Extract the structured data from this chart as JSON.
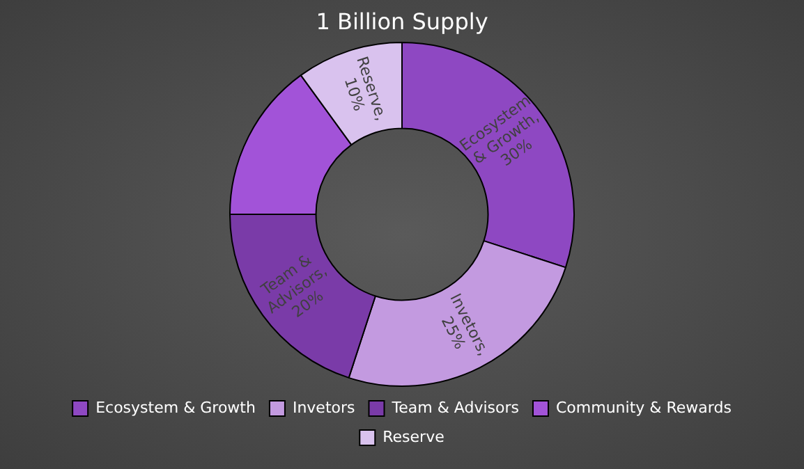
{
  "chart_data": {
    "type": "donut",
    "title": "1 Billion Supply",
    "categories": [
      "Ecosystem & Growth",
      "Invetors",
      "Team & Advisors",
      "Community & Rewards",
      "Reserve"
    ],
    "values": [
      30,
      25,
      20,
      15,
      10
    ],
    "colors": [
      "#8e48c2",
      "#c39ae0",
      "#7a3ba8",
      "#a253d8",
      "#d9c2ee"
    ],
    "value_labels": [
      "Ecosystem & Growth, 30%",
      "Invetors, 25%",
      "Team & Advisors, 20%",
      null,
      "Reserve, 10%"
    ],
    "legend": "bottom"
  }
}
